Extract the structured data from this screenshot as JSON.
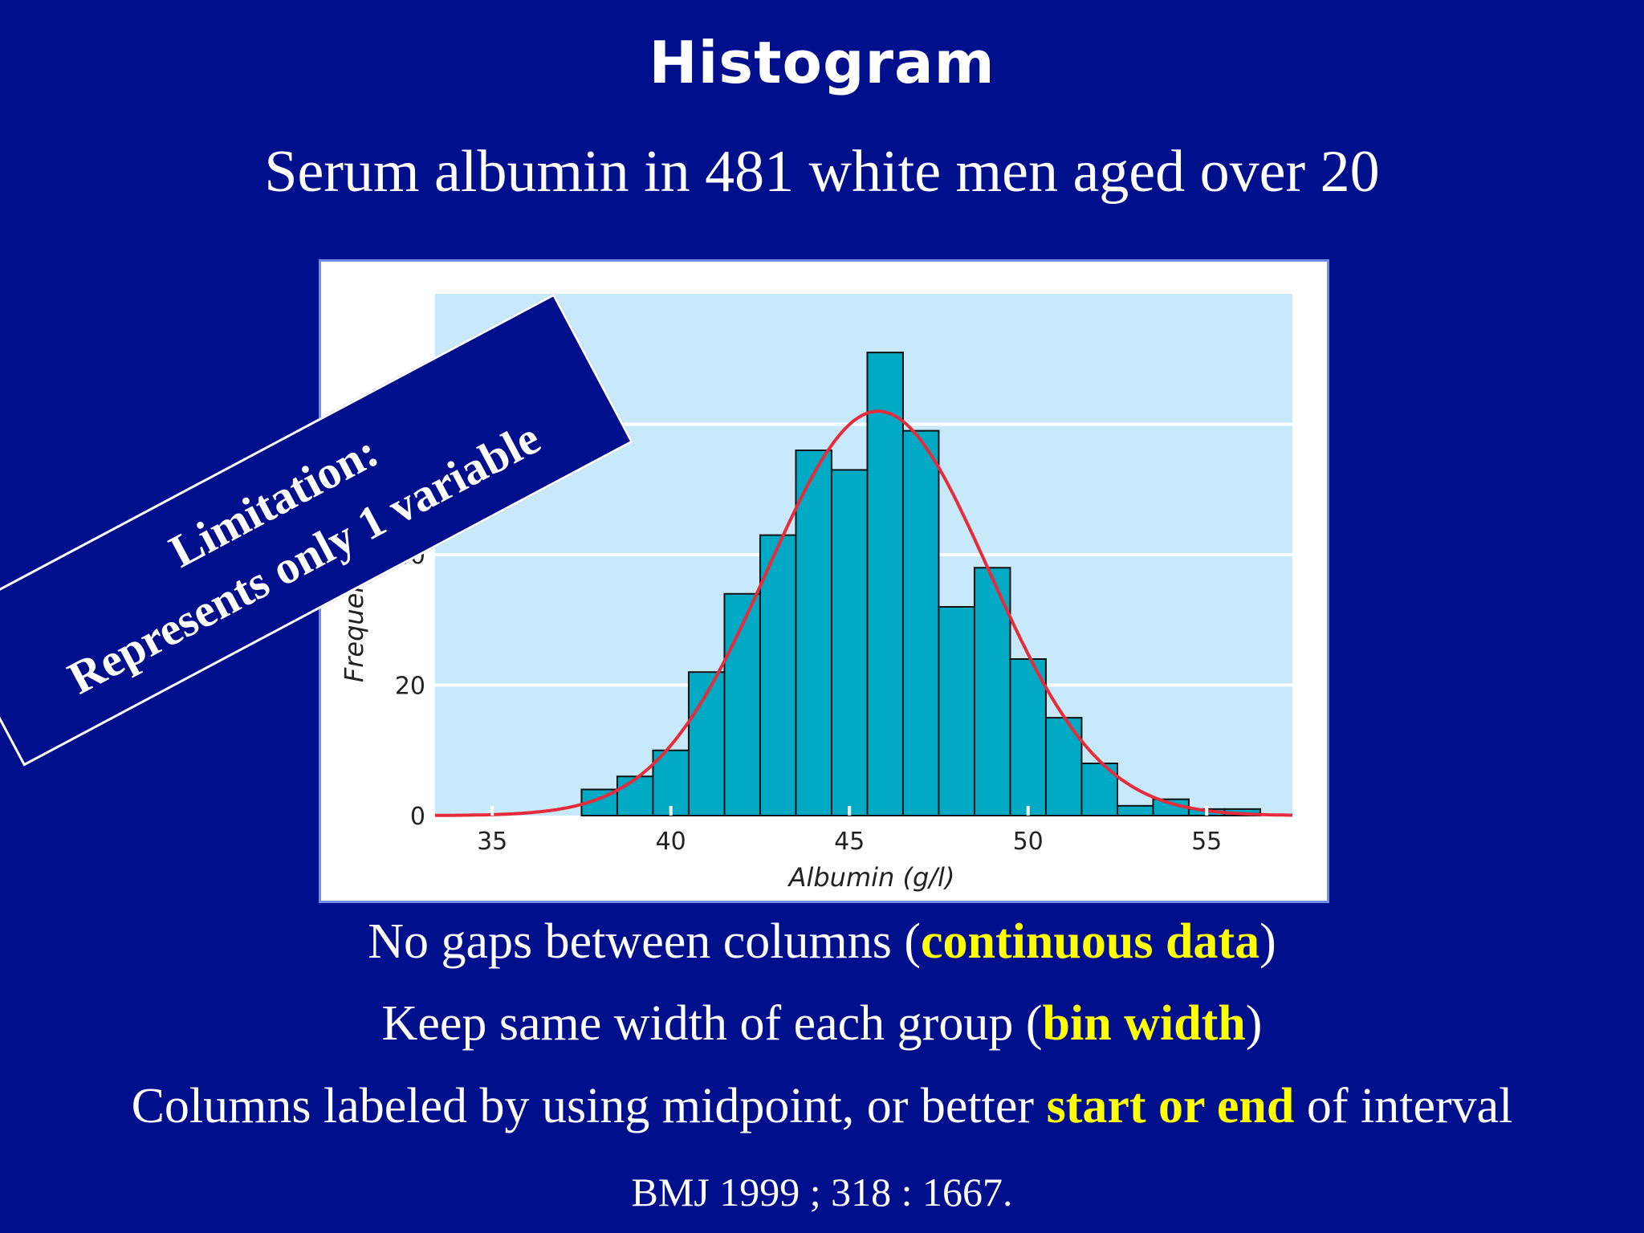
{
  "slide": {
    "title": "Histogram",
    "subtitle": "Serum albumin in 481 white men aged over 20",
    "bullets": [
      {
        "pre": "No gaps between columns (",
        "hl": "continuous data",
        "post": ")"
      },
      {
        "pre": "Keep same width of each group (",
        "hl": "bin width",
        "post": ")"
      },
      {
        "pre": "Columns labeled by using midpoint, or better ",
        "hl": "start or end",
        "post": " of interval"
      }
    ],
    "citation": "BMJ 1999 ; 318 : 1667."
  },
  "callout": {
    "line1": "Limitation:",
    "line2": "Represents only 1 variable"
  },
  "chart_data": {
    "type": "bar",
    "xlabel": "Albumin (g/l)",
    "ylabel": "Frequency",
    "x_ticks": [
      35,
      40,
      45,
      50,
      55
    ],
    "y_ticks": [
      0,
      20,
      40
    ],
    "xlim": [
      33.4,
      57.4
    ],
    "ylim": [
      0,
      80
    ],
    "bin_width": 1,
    "bins_start": [
      37.5,
      38.5,
      39.5,
      40.5,
      41.5,
      42.5,
      43.5,
      44.5,
      45.5,
      46.5,
      47.5,
      48.5,
      49.5,
      50.5,
      51.5,
      52.5,
      53.5,
      54.5,
      55.5
    ],
    "values": [
      4,
      6,
      10,
      22,
      34,
      43,
      56,
      53,
      71,
      59,
      32,
      38,
      24,
      15,
      8,
      1.5,
      2.5,
      1,
      1
    ],
    "curve": {
      "type": "normal",
      "mean": 45.8,
      "sd": 3.1,
      "peak": 62
    },
    "colors": {
      "bar": "#00a9c4",
      "plot_bg": "#c8e9f9",
      "curve": "#e62c3a",
      "grid": "#ffffff"
    }
  }
}
